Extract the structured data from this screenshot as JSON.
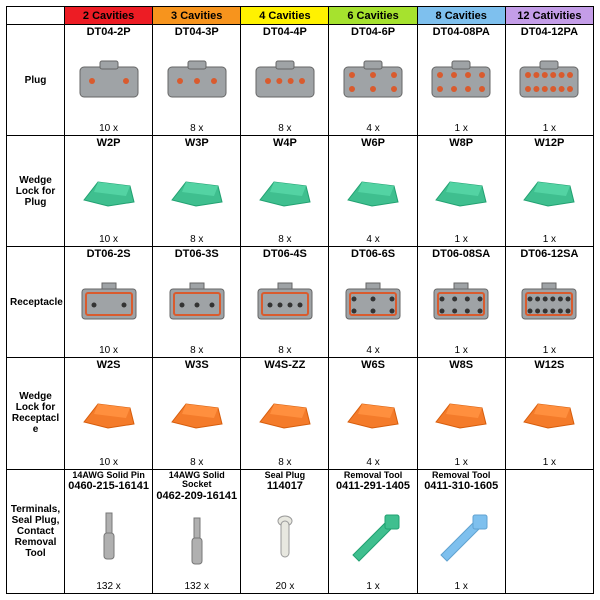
{
  "columns": [
    {
      "label": "2 Cavities",
      "bg": "#ed1c24"
    },
    {
      "label": "3 Cavities",
      "bg": "#f7941d"
    },
    {
      "label": "4 Cavities",
      "bg": "#fff200"
    },
    {
      "label": "6 Cavities",
      "bg": "#a6e22e"
    },
    {
      "label": "8 Cavities",
      "bg": "#7ec0ee"
    },
    {
      "label": "12 Cativities",
      "bg": "#c49de8"
    }
  ],
  "rows": [
    {
      "label": "Plug"
    },
    {
      "label": "Wedge Lock for Plug"
    },
    {
      "label": "Receptacle"
    },
    {
      "label": "Wedge Lock for Receptacl e"
    },
    {
      "label": "Terminals, Seal Plug, Contact Removal Tool"
    }
  ],
  "cells": {
    "r0": [
      {
        "part": "DT04-2P",
        "qty": "10 x",
        "shape": "plug",
        "color": "#9fa3a6",
        "holes": 2
      },
      {
        "part": "DT04-3P",
        "qty": "8 x",
        "shape": "plug",
        "color": "#9fa3a6",
        "holes": 3
      },
      {
        "part": "DT04-4P",
        "qty": "8 x",
        "shape": "plug",
        "color": "#9fa3a6",
        "holes": 4
      },
      {
        "part": "DT04-6P",
        "qty": "4 x",
        "shape": "plug",
        "color": "#9fa3a6",
        "holes": 6
      },
      {
        "part": "DT04-08PA",
        "qty": "1 x",
        "shape": "plug",
        "color": "#9fa3a6",
        "holes": 8
      },
      {
        "part": "DT04-12PA",
        "qty": "1 x",
        "shape": "plug",
        "color": "#9fa3a6",
        "holes": 12
      }
    ],
    "r1": [
      {
        "part": "W2P",
        "qty": "10 x",
        "shape": "wedge",
        "color": "#3fbf8f"
      },
      {
        "part": "W3P",
        "qty": "8 x",
        "shape": "wedge",
        "color": "#3fbf8f"
      },
      {
        "part": "W4P",
        "qty": "8 x",
        "shape": "wedge",
        "color": "#3fbf8f"
      },
      {
        "part": "W6P",
        "qty": "4 x",
        "shape": "wedge",
        "color": "#3fbf8f"
      },
      {
        "part": "W8P",
        "qty": "1 x",
        "shape": "wedge",
        "color": "#3fbf8f"
      },
      {
        "part": "W12P",
        "qty": "1 x",
        "shape": "wedge",
        "color": "#3fbf8f"
      }
    ],
    "r2": [
      {
        "part": "DT06-2S",
        "qty": "10 x",
        "shape": "recept",
        "color": "#9fa3a6",
        "holes": 2
      },
      {
        "part": "DT06-3S",
        "qty": "8 x",
        "shape": "recept",
        "color": "#9fa3a6",
        "holes": 3
      },
      {
        "part": "DT06-4S",
        "qty": "8 x",
        "shape": "recept",
        "color": "#9fa3a6",
        "holes": 4
      },
      {
        "part": "DT06-6S",
        "qty": "4 x",
        "shape": "recept",
        "color": "#9fa3a6",
        "holes": 6
      },
      {
        "part": "DT06-08SA",
        "qty": "1 x",
        "shape": "recept",
        "color": "#9fa3a6",
        "holes": 8
      },
      {
        "part": "DT06-12SA",
        "qty": "1 x",
        "shape": "recept",
        "color": "#9fa3a6",
        "holes": 12
      }
    ],
    "r3": [
      {
        "part": "W2S",
        "qty": "10 x",
        "shape": "wedge",
        "color": "#f47b2a"
      },
      {
        "part": "W3S",
        "qty": "8 x",
        "shape": "wedge",
        "color": "#f47b2a"
      },
      {
        "part": "W4S-ZZ",
        "qty": "8 x",
        "shape": "wedge",
        "color": "#f47b2a"
      },
      {
        "part": "W6S",
        "qty": "4 x",
        "shape": "wedge",
        "color": "#f47b2a"
      },
      {
        "part": "W8S",
        "qty": "1 x",
        "shape": "wedge",
        "color": "#f47b2a"
      },
      {
        "part": "W12S",
        "qty": "1 x",
        "shape": "wedge",
        "color": "#f47b2a"
      }
    ],
    "r4": [
      {
        "partPre": "14AWG Solid Pin",
        "part": "0460-215-16141",
        "qty": "132 x",
        "shape": "pin",
        "color": "#b0b0b0"
      },
      {
        "partPre": "14AWG Solid Socket",
        "part": "0462-209-16141",
        "qty": "132 x",
        "shape": "pin",
        "color": "#b0b0b0"
      },
      {
        "partPre": "Seal Plug",
        "part": "114017",
        "qty": "20 x",
        "shape": "seal",
        "color": "#e8e8e0"
      },
      {
        "partPre": "Removal Tool",
        "part": "0411-291-1405",
        "qty": "1 x",
        "shape": "tool",
        "color": "#3fbf8f"
      },
      {
        "partPre": "Removal Tool",
        "part": "0411-310-1605",
        "qty": "1 x",
        "shape": "tool",
        "color": "#7ec0ee"
      },
      {
        "empty": true
      }
    ]
  },
  "style": {
    "table_border": "#000000",
    "cell_bg": "#ffffff",
    "font": "Arial"
  }
}
